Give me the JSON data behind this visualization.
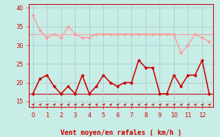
{
  "xlabel": "Vent moyen/en rafales ( km/h )",
  "bg_color": "#c8ece6",
  "grid_color": "#aacccc",
  "xlim": [
    -0.3,
    12.8
  ],
  "ylim": [
    13.5,
    41
  ],
  "yticks": [
    15,
    20,
    25,
    30,
    35,
    40
  ],
  "xticks": [
    0,
    1,
    2,
    3,
    4,
    5,
    6,
    7,
    8,
    9,
    10,
    11,
    12
  ],
  "wind_mean_x": [
    0.0,
    0.5,
    1.0,
    1.5,
    2.0,
    2.5,
    3.0,
    3.5,
    4.0,
    4.5,
    5.0,
    5.5,
    6.0,
    6.5,
    7.0,
    7.5,
    8.0,
    8.5,
    9.0,
    9.5,
    10.0,
    10.5,
    11.0,
    11.5,
    12.0,
    12.5
  ],
  "wind_mean_y": [
    17,
    21,
    22,
    19,
    17,
    19,
    17,
    22,
    17,
    19,
    22,
    20,
    19,
    20,
    20,
    26,
    24,
    24,
    17,
    17,
    22,
    19,
    22,
    22,
    26,
    17
  ],
  "wind_gust_x": [
    0.0,
    0.5,
    1.0,
    1.5,
    2.0,
    2.5,
    3.0,
    3.5,
    4.0,
    4.5,
    5.0,
    5.5,
    6.0,
    6.5,
    7.0,
    7.5,
    8.0,
    8.5,
    9.0,
    9.5,
    10.0,
    10.5,
    11.0,
    11.5,
    12.0,
    12.5
  ],
  "wind_gust_y": [
    38,
    34,
    32,
    33,
    32,
    35,
    33,
    32,
    32,
    33,
    33,
    33,
    33,
    33,
    33,
    33,
    33,
    33,
    33,
    33,
    33,
    28,
    30,
    33,
    32,
    31
  ],
  "mean_color": "#cc0000",
  "gust_color": "#ff9999",
  "arrow_color": "#cc0000",
  "xlabel_color": "#cc0000",
  "tick_color": "#cc0000",
  "hline_mean": 17,
  "hline_gust": 33
}
